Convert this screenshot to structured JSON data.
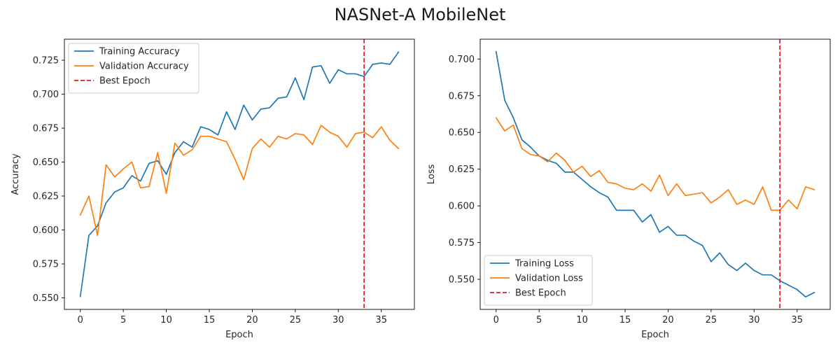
{
  "figure": {
    "title": "NASNet-A MobileNet"
  },
  "colors": {
    "training": "#1f77b4",
    "validation": "#ff7f0e",
    "best_epoch": "#e41a1c"
  },
  "chart_data": [
    {
      "type": "line",
      "title": "",
      "xlabel": "Epoch",
      "ylabel": "Accuracy",
      "xlim": [
        -1.85,
        38.85
      ],
      "ylim": [
        0.5415,
        0.7405
      ],
      "xticks": [
        0,
        5,
        10,
        15,
        20,
        25,
        30,
        35
      ],
      "yticks": [
        0.55,
        0.575,
        0.6,
        0.625,
        0.65,
        0.675,
        0.7,
        0.725
      ],
      "ytick_decimals": 3,
      "grid": false,
      "legend_position": "upper-left",
      "x": [
        0,
        1,
        2,
        3,
        4,
        5,
        6,
        7,
        8,
        9,
        10,
        11,
        12,
        13,
        14,
        15,
        16,
        17,
        18,
        19,
        20,
        21,
        22,
        23,
        24,
        25,
        26,
        27,
        28,
        29,
        30,
        31,
        32,
        33,
        34,
        35,
        36,
        37
      ],
      "series": [
        {
          "name": "Training Accuracy",
          "color_key": "training",
          "values": [
            0.551,
            0.596,
            0.603,
            0.62,
            0.628,
            0.631,
            0.64,
            0.636,
            0.649,
            0.651,
            0.641,
            0.657,
            0.665,
            0.661,
            0.676,
            0.674,
            0.67,
            0.687,
            0.674,
            0.692,
            0.681,
            0.689,
            0.69,
            0.697,
            0.698,
            0.712,
            0.696,
            0.72,
            0.721,
            0.708,
            0.718,
            0.715,
            0.715,
            0.713,
            0.722,
            0.723,
            0.722,
            0.731
          ]
        },
        {
          "name": "Validation Accuracy",
          "color_key": "validation",
          "values": [
            0.611,
            0.625,
            0.596,
            0.648,
            0.639,
            0.645,
            0.65,
            0.631,
            0.632,
            0.657,
            0.627,
            0.664,
            0.655,
            0.659,
            0.669,
            0.669,
            0.667,
            0.665,
            0.652,
            0.637,
            0.66,
            0.667,
            0.661,
            0.669,
            0.667,
            0.671,
            0.67,
            0.663,
            0.677,
            0.672,
            0.669,
            0.661,
            0.671,
            0.672,
            0.668,
            0.676,
            0.666,
            0.66
          ]
        }
      ],
      "vline": {
        "name": "Best Epoch",
        "x": 33,
        "style": "dashed",
        "color_key": "best_epoch"
      }
    },
    {
      "type": "line",
      "title": "",
      "xlabel": "Epoch",
      "ylabel": "Loss",
      "xlim": [
        -1.85,
        38.85
      ],
      "ylim": [
        0.5295,
        0.7135
      ],
      "xticks": [
        0,
        5,
        10,
        15,
        20,
        25,
        30,
        35
      ],
      "yticks": [
        0.55,
        0.575,
        0.6,
        0.625,
        0.65,
        0.675,
        0.7
      ],
      "ytick_decimals": 3,
      "grid": false,
      "legend_position": "lower-left",
      "x": [
        0,
        1,
        2,
        3,
        4,
        5,
        6,
        7,
        8,
        9,
        10,
        11,
        12,
        13,
        14,
        15,
        16,
        17,
        18,
        19,
        20,
        21,
        22,
        23,
        24,
        25,
        26,
        27,
        28,
        29,
        30,
        31,
        32,
        33,
        34,
        35,
        36,
        37
      ],
      "series": [
        {
          "name": "Training Loss",
          "color_key": "training",
          "values": [
            0.705,
            0.672,
            0.66,
            0.645,
            0.64,
            0.634,
            0.631,
            0.629,
            0.623,
            0.623,
            0.618,
            0.613,
            0.609,
            0.606,
            0.597,
            0.597,
            0.597,
            0.589,
            0.594,
            0.582,
            0.586,
            0.58,
            0.58,
            0.576,
            0.573,
            0.562,
            0.568,
            0.56,
            0.556,
            0.561,
            0.556,
            0.553,
            0.553,
            0.549,
            0.546,
            0.543,
            0.538,
            0.541
          ]
        },
        {
          "name": "Validation Loss",
          "color_key": "validation",
          "values": [
            0.66,
            0.651,
            0.655,
            0.639,
            0.635,
            0.634,
            0.63,
            0.636,
            0.631,
            0.623,
            0.627,
            0.62,
            0.624,
            0.616,
            0.615,
            0.612,
            0.611,
            0.615,
            0.61,
            0.621,
            0.607,
            0.615,
            0.607,
            0.608,
            0.609,
            0.602,
            0.606,
            0.611,
            0.601,
            0.604,
            0.601,
            0.613,
            0.597,
            0.597,
            0.604,
            0.598,
            0.613,
            0.611
          ]
        }
      ],
      "vline": {
        "name": "Best Epoch",
        "x": 33,
        "style": "dashed",
        "color_key": "best_epoch"
      }
    }
  ]
}
